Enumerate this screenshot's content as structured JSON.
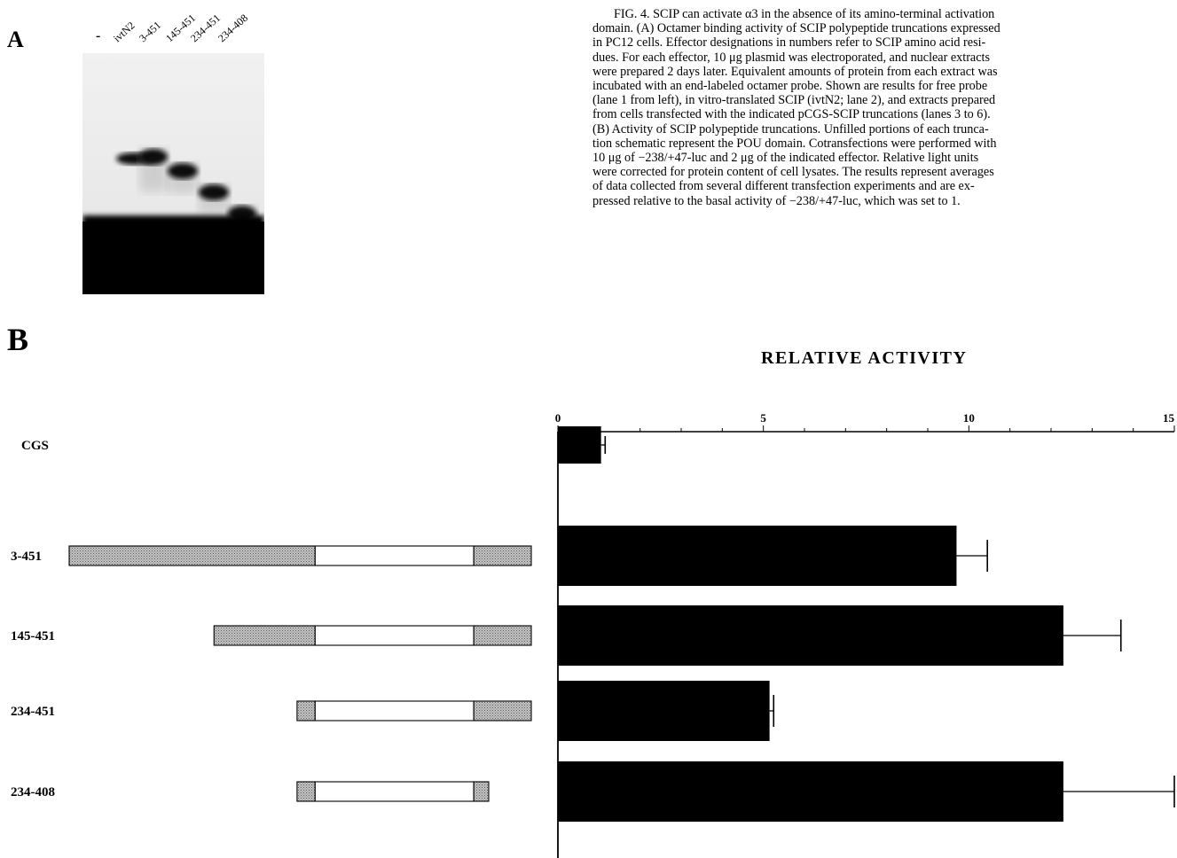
{
  "figure": {
    "panel_a_label": "A",
    "panel_b_label": "B",
    "gel_lanes": [
      "-",
      "ivtN2",
      "3-451",
      "145-451",
      "234-451",
      "234-408"
    ],
    "caption_lines": [
      "FIG. 4. SCIP can activate α3 in the absence of its amino-terminal activation",
      "domain. (A) Octamer binding activity of SCIP polypeptide truncations expressed",
      "in PC12 cells. Effector designations in numbers refer to SCIP amino acid resi-",
      "dues. For each effector, 10 μg plasmid was electroporated, and nuclear extracts",
      "were prepared 2 days later. Equivalent amounts of protein from each extract was",
      "incubated with an end-labeled octamer probe. Shown are results for free probe",
      "(lane 1 from left), in vitro-translated SCIP (ivtN2; lane 2), and extracts prepared",
      "from cells transfected with the indicated pCGS-SCIP truncations (lanes 3 to 6).",
      "(B) Activity of SCIP polypeptide truncations. Unfilled portions of each trunca-",
      "tion schematic represent the POU domain. Cotransfections were performed with",
      "10 μg of −238/+47-luc and 2 μg of the indicated effector. Relative light units",
      "were corrected for protein content of cell lysates. The results represent averages",
      "of data collected from several different transfection experiments and are ex-",
      "pressed relative to the basal activity of −238/+47-luc, which was set to 1."
    ]
  },
  "chart_data": {
    "type": "bar",
    "orientation": "horizontal",
    "title": "RELATIVE ACTIVITY",
    "categories": [
      "CGS",
      "3-451",
      "145-451",
      "234-451",
      "234-408"
    ],
    "values": [
      1.05,
      9.7,
      12.3,
      5.15,
      12.3
    ],
    "errors": [
      0.1,
      0.75,
      1.4,
      0.1,
      2.85
    ],
    "xlim": [
      0,
      15
    ],
    "xticks": [
      0,
      5,
      10,
      15
    ],
    "bar_color": "#000000",
    "schematics": [
      {
        "name": "CGS",
        "segments": []
      },
      {
        "name": "3-451",
        "segments": [
          {
            "from": 3,
            "to": 234,
            "fill": "shaded"
          },
          {
            "from": 234,
            "to": 383,
            "fill": "open"
          },
          {
            "from": 383,
            "to": 437,
            "fill": "shaded"
          }
        ]
      },
      {
        "name": "145-451",
        "segments": [
          {
            "from": 139,
            "to": 234,
            "fill": "shaded"
          },
          {
            "from": 234,
            "to": 383,
            "fill": "open"
          },
          {
            "from": 383,
            "to": 437,
            "fill": "shaded"
          }
        ]
      },
      {
        "name": "234-451",
        "segments": [
          {
            "from": 217,
            "to": 234,
            "fill": "shaded"
          },
          {
            "from": 234,
            "to": 383,
            "fill": "open"
          },
          {
            "from": 383,
            "to": 437,
            "fill": "shaded"
          }
        ]
      },
      {
        "name": "234-408",
        "segments": [
          {
            "from": 217,
            "to": 234,
            "fill": "shaded"
          },
          {
            "from": 234,
            "to": 383,
            "fill": "open"
          },
          {
            "from": 383,
            "to": 397,
            "fill": "shaded"
          }
        ]
      }
    ]
  }
}
